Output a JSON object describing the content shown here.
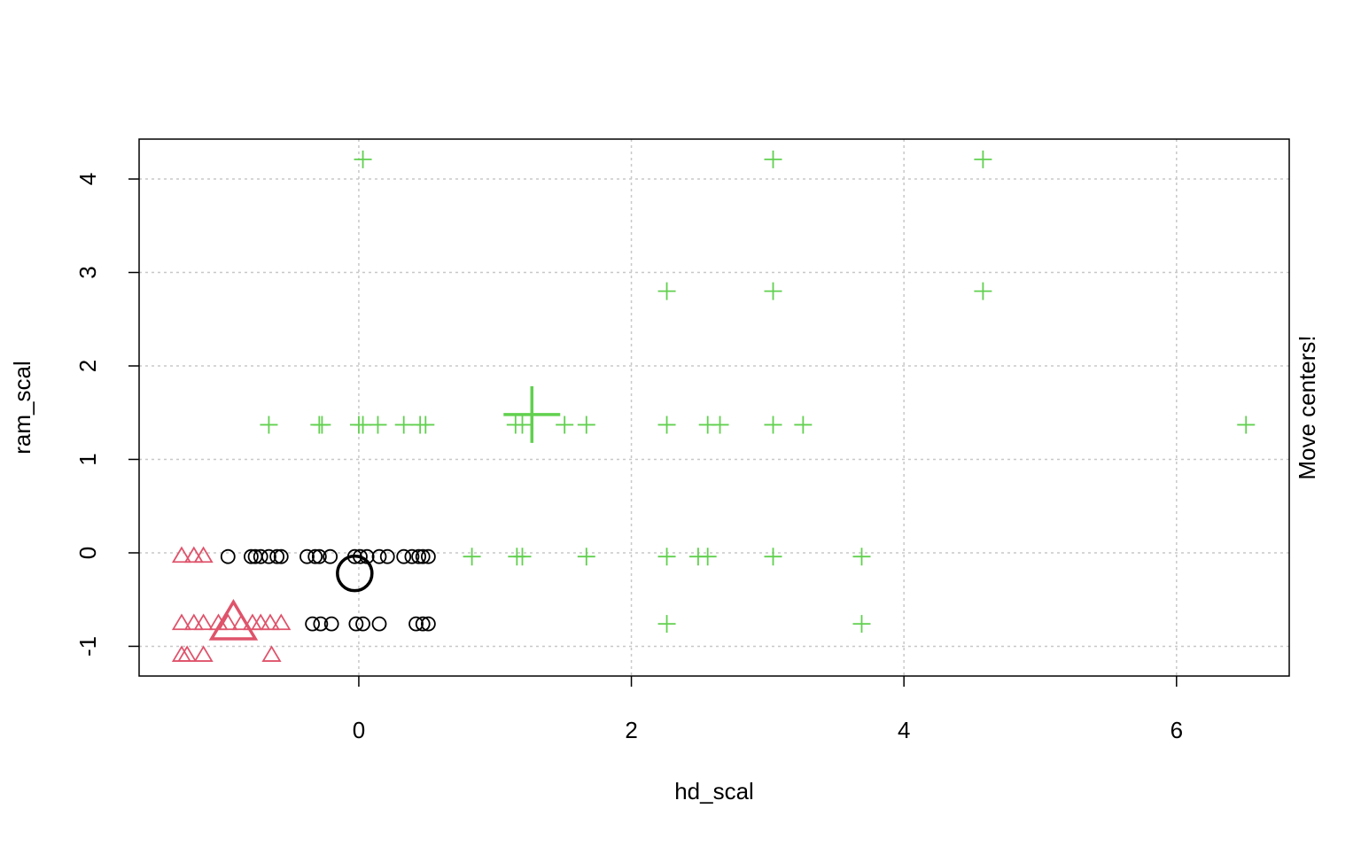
{
  "chart_data": {
    "type": "scatter",
    "x_label": "hd_scal",
    "y_label": "ram_scal",
    "annotation": "Move centers!",
    "xlim": [
      -1.612,
      6.827
    ],
    "ylim": [
      -1.318,
      4.427
    ],
    "xticks": [
      0,
      2,
      4,
      6
    ],
    "yticks": [
      -1,
      0,
      1,
      2,
      3,
      4
    ],
    "grid": true,
    "series": [
      {
        "color": "#000000",
        "marker": "circle",
        "x": [
          -0.96,
          -0.79,
          -0.76,
          -0.72,
          -0.66,
          -0.6,
          -0.57,
          -0.38,
          -0.32,
          -0.29,
          -0.21,
          -0.03,
          0.01,
          0.06,
          0.15,
          0.21,
          0.33,
          0.39,
          0.44,
          0.47,
          0.51,
          -0.34,
          -0.28,
          -0.2,
          -0.02,
          0.03,
          0.15,
          0.42,
          0.47,
          0.51
        ],
        "y": [
          -0.04,
          -0.04,
          -0.04,
          -0.04,
          -0.04,
          -0.04,
          -0.04,
          -0.04,
          -0.04,
          -0.04,
          -0.04,
          -0.04,
          -0.04,
          -0.04,
          -0.04,
          -0.04,
          -0.04,
          -0.04,
          -0.04,
          -0.04,
          -0.04,
          -0.76,
          -0.76,
          -0.76,
          -0.76,
          -0.76,
          -0.76,
          -0.76,
          -0.76,
          -0.76
        ],
        "center": {
          "x": -0.03,
          "y": -0.22
        }
      },
      {
        "color": "#DF536B",
        "marker": "triangle",
        "x": [
          -1.3,
          -1.21,
          -1.14,
          -1.3,
          -1.21,
          -1.14,
          -1.03,
          -0.96,
          -0.86,
          -0.78,
          -0.72,
          -0.65,
          -0.57,
          -1.3,
          -1.26,
          -1.14,
          -0.64
        ],
        "y": [
          -0.04,
          -0.04,
          -0.04,
          -0.76,
          -0.76,
          -0.76,
          -0.76,
          -0.76,
          -0.76,
          -0.76,
          -0.76,
          -0.76,
          -0.76,
          -1.1,
          -1.1,
          -1.1,
          -1.1
        ],
        "center": {
          "x": -0.92,
          "y": -0.77
        }
      },
      {
        "color": "#61D04F",
        "marker": "plus",
        "x": [
          0.03,
          3.04,
          4.58,
          2.26,
          3.04,
          4.58,
          -0.66,
          -0.29,
          -0.27,
          0,
          0.03,
          0.14,
          0.33,
          0.45,
          0.49,
          1.15,
          1.2,
          1.51,
          1.67,
          2.26,
          2.56,
          2.65,
          3.04,
          3.26,
          6.51,
          0.83,
          1.16,
          1.2,
          1.67,
          2.26,
          2.49,
          2.56,
          3.04,
          3.69,
          2.26,
          3.69
        ],
        "y": [
          4.21,
          4.21,
          4.21,
          2.8,
          2.8,
          2.8,
          1.37,
          1.37,
          1.37,
          1.37,
          1.37,
          1.37,
          1.37,
          1.37,
          1.37,
          1.37,
          1.37,
          1.37,
          1.37,
          1.37,
          1.37,
          1.37,
          1.37,
          1.37,
          1.37,
          -0.04,
          -0.04,
          -0.04,
          -0.04,
          -0.04,
          -0.04,
          -0.04,
          -0.04,
          -0.04,
          -0.76,
          -0.76
        ],
        "center": {
          "x": 1.27,
          "y": 1.48
        }
      }
    ]
  }
}
